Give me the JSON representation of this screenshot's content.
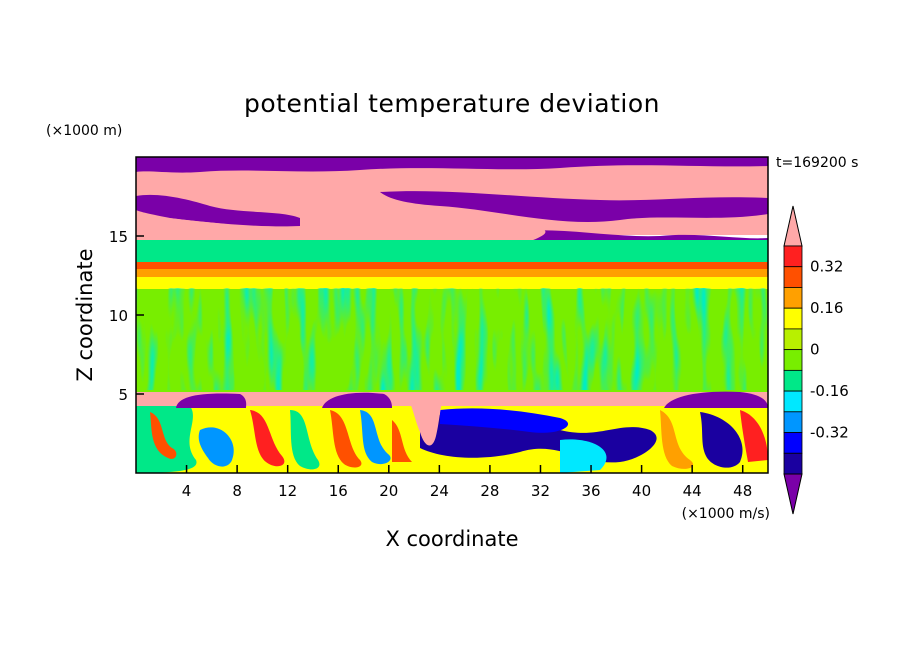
{
  "chart_data": {
    "type": "heatmap",
    "title": "potential temperature deviation",
    "xlabel": "X coordinate",
    "ylabel": "Z coordinate",
    "x_unit": "(×1000 m/s)",
    "y_unit": "(×1000 m)",
    "time_label": "t=169200 s",
    "xlim": [
      0,
      50
    ],
    "ylim": [
      0,
      20
    ],
    "x_ticks": [
      4,
      8,
      12,
      16,
      20,
      24,
      28,
      32,
      36,
      40,
      44,
      48
    ],
    "y_ticks": [
      5,
      10,
      15
    ],
    "grid": false,
    "colorbar": {
      "placement": "right",
      "boundaries": [
        -0.48,
        -0.4,
        -0.32,
        -0.24,
        -0.16,
        -0.08,
        0,
        0.08,
        0.16,
        0.24,
        0.32,
        0.4
      ],
      "colors": [
        "#7a00a8",
        "#1a00a0",
        "#0000ff",
        "#0096ff",
        "#00e8ff",
        "#00e888",
        "#78ee00",
        "#b8f000",
        "#ffff00",
        "#ffa000",
        "#ff5000",
        "#ff2020",
        "#ffa8a8"
      ],
      "labels": [
        "0.32",
        "0.16",
        "0",
        "-0.16",
        "-0.32"
      ],
      "label_values": [
        0.32,
        0.16,
        0,
        -0.16,
        -0.32
      ]
    },
    "layers": [
      {
        "z": [
          0,
          4
        ],
        "description": "mixed warm and cold anomalies near surface",
        "value_range": [
          -0.48,
          0.4
        ]
      },
      {
        "z": [
          4,
          5.2
        ],
        "value": 0.48,
        "cold_patches_x": [
          [
            3,
            7.5
          ],
          [
            15,
            20
          ],
          [
            42,
            50
          ]
        ]
      },
      {
        "z": [
          5.2,
          12
        ],
        "value_range": [
          -0.08,
          0.08
        ]
      },
      {
        "z": [
          12,
          13.5
        ],
        "value_range": [
          0.16,
          0.4
        ]
      },
      {
        "z": [
          13.5,
          20
        ],
        "value_range": [
          -0.48,
          0.48
        ]
      }
    ]
  }
}
